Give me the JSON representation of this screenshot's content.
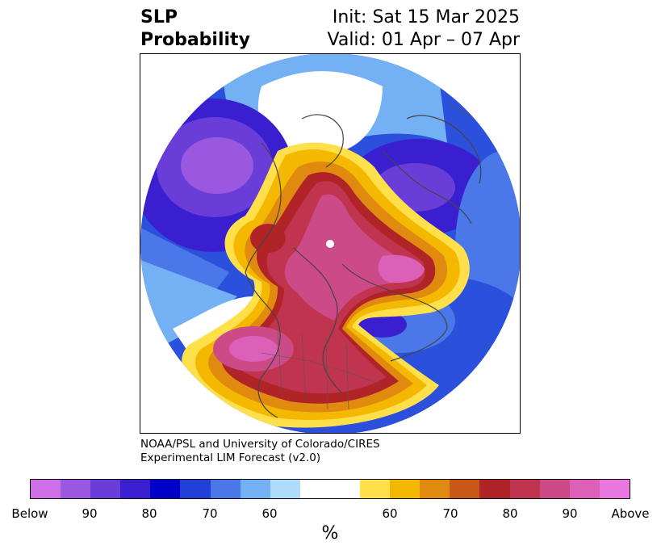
{
  "header": {
    "left_line1": "SLP",
    "left_line2": "Probability",
    "right_line1": "Init: Sat 15 Mar 2025",
    "right_line2": "Valid: 01 Apr – 07 Apr"
  },
  "credit": {
    "line1": "NOAA/PSL and University of Colorado/CIRES",
    "line2": "Experimental LIM Forecast (v2.0)"
  },
  "colorbar": {
    "unit": "%",
    "below_colors": [
      "#d070e8",
      "#9a58e0",
      "#6a3cd8",
      "#3a1fd0",
      "#0000c8",
      "#2040d8",
      "#4a78e8",
      "#74b0f4",
      "#b0dcfc"
    ],
    "neutral_color": "#ffffff",
    "above_colors": [
      "#ffe04a",
      "#f4b800",
      "#e08a10",
      "#c85818",
      "#b02428",
      "#c03450",
      "#cc4a88",
      "#dc60b8",
      "#e878e0"
    ],
    "tick_labels": [
      "Below",
      "90",
      "80",
      "70",
      "60",
      "60",
      "70",
      "80",
      "90",
      "Above"
    ]
  }
}
